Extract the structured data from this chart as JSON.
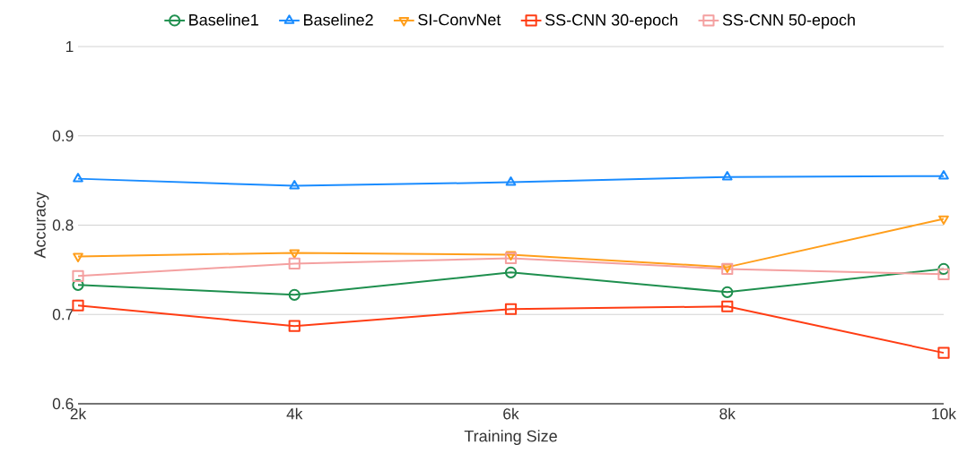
{
  "chart_data": {
    "type": "line",
    "xlabel": "Training Size",
    "ylabel": "Accuracy",
    "x": [
      2000,
      4000,
      6000,
      8000,
      10000
    ],
    "xlim": [
      2000,
      10000
    ],
    "xticks": [
      {
        "value": 2000,
        "label": "2k"
      },
      {
        "value": 4000,
        "label": "4k"
      },
      {
        "value": 6000,
        "label": "6k"
      },
      {
        "value": 8000,
        "label": "8k"
      },
      {
        "value": 10000,
        "label": "10k"
      }
    ],
    "ylim": [
      0.6,
      1
    ],
    "yticks": [
      0.6,
      0.7,
      0.8,
      0.9,
      1
    ],
    "grid": "y",
    "legend": "top",
    "series": [
      {
        "name": "Baseline1",
        "color": "#1e8f4e",
        "marker": "circle",
        "values": [
          0.733,
          0.722,
          0.747,
          0.725,
          0.751
        ]
      },
      {
        "name": "Baseline2",
        "color": "#1a8cff",
        "marker": "triangle",
        "values": [
          0.852,
          0.844,
          0.848,
          0.854,
          0.855
        ]
      },
      {
        "name": "SI-ConvNet",
        "color": "#ff9e1b",
        "marker": "triangle down",
        "values": [
          0.765,
          0.769,
          0.767,
          0.753,
          0.807
        ]
      },
      {
        "name": "SS-CNN 30-epoch",
        "color": "#ff3d14",
        "marker": "square",
        "values": [
          0.71,
          0.687,
          0.706,
          0.709,
          0.657
        ]
      },
      {
        "name": "SS-CNN 50-epoch",
        "color": "#f4a0a0",
        "marker": "square",
        "values": [
          0.743,
          0.757,
          0.763,
          0.751,
          0.745
        ]
      }
    ]
  }
}
